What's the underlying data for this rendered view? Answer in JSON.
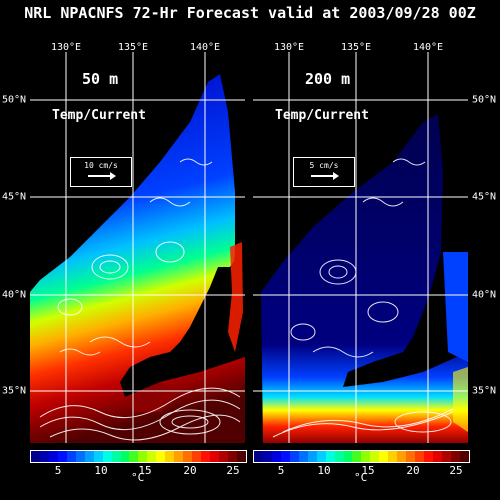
{
  "title": "NRL NPACNFS 72-Hr Forecast valid at 2003/09/28 00Z",
  "lon_ticks": [
    "130°E",
    "135°E",
    "140°E"
  ],
  "lat_ticks": [
    "50°N",
    "45°N",
    "40°N",
    "35°N"
  ],
  "panels": [
    {
      "depth": "50 m",
      "field": "Temp/Current",
      "ref_vector": "10 cm/s"
    },
    {
      "depth": "200 m",
      "field": "Temp/Current",
      "ref_vector": "5 cm/s"
    }
  ],
  "colorbar": {
    "ticks": [
      "5",
      "10",
      "15",
      "20",
      "25"
    ],
    "unit": "°C",
    "colors": [
      "#00008b",
      "#0000b0",
      "#0000dd",
      "#0010ff",
      "#0040ff",
      "#0070ff",
      "#00a0ff",
      "#00d0ff",
      "#00ffe0",
      "#00ffa0",
      "#00ff60",
      "#40ff20",
      "#90ff00",
      "#d0ff00",
      "#ffff00",
      "#ffd000",
      "#ffa000",
      "#ff7000",
      "#ff4000",
      "#ff1000",
      "#e00000",
      "#b00000",
      "#800000",
      "#500000"
    ]
  }
}
